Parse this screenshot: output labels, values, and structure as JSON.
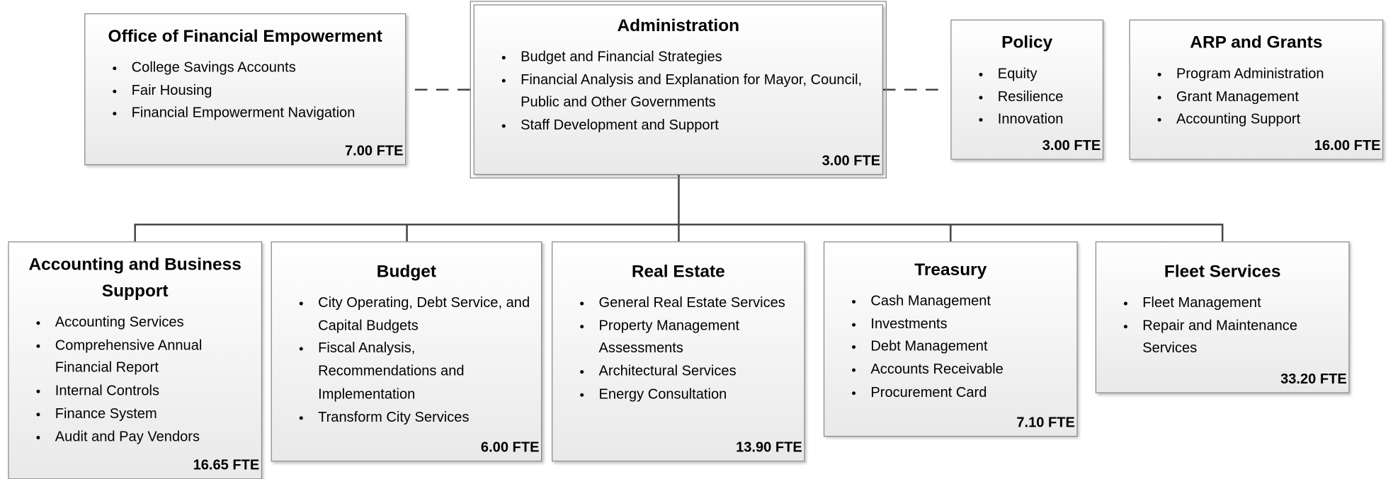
{
  "nodes": [
    {
      "title": "Office of Financial Empowerment",
      "items": [
        "College Savings Accounts",
        "Fair Housing",
        "Financial Empowerment Navigation"
      ],
      "fte": "7.00 FTE"
    },
    {
      "title": "Administration",
      "items": [
        "Budget and Financial Strategies",
        "Financial Analysis and Explanation for Mayor, Council, Public and Other Governments",
        "Staff Development and Support"
      ],
      "fte": "3.00 FTE"
    },
    {
      "title": "Policy",
      "items": [
        "Equity",
        "Resilience",
        "Innovation"
      ],
      "fte": "3.00 FTE"
    },
    {
      "title": "ARP and Grants",
      "items": [
        "Program Administration",
        "Grant Management",
        "Accounting Support"
      ],
      "fte": "16.00 FTE"
    },
    {
      "title": "Accounting and Business Support",
      "items": [
        "Accounting Services",
        "Comprehensive Annual Financial Report",
        "Internal Controls",
        "Finance System",
        "Audit and Pay Vendors"
      ],
      "fte": "16.65 FTE"
    },
    {
      "title": "Budget",
      "items": [
        "City Operating, Debt Service, and Capital Budgets",
        "Fiscal Analysis, Recommendations and Implementation",
        "Transform City Services"
      ],
      "fte": "6.00 FTE"
    },
    {
      "title": "Real Estate",
      "items": [
        "General Real Estate Services",
        "Property Management Assessments",
        "Architectural Services",
        "Energy Consultation"
      ],
      "fte": "13.90 FTE"
    },
    {
      "title": "Treasury",
      "items": [
        "Cash Management",
        "Investments",
        "Debt Management",
        "Accounts Receivable",
        "Procurement Card"
      ],
      "fte": "7.10 FTE"
    },
    {
      "title": "Fleet Services",
      "items": [
        "Fleet Management",
        "Repair and Maintenance Services"
      ],
      "fte": "33.20 FTE"
    }
  ]
}
